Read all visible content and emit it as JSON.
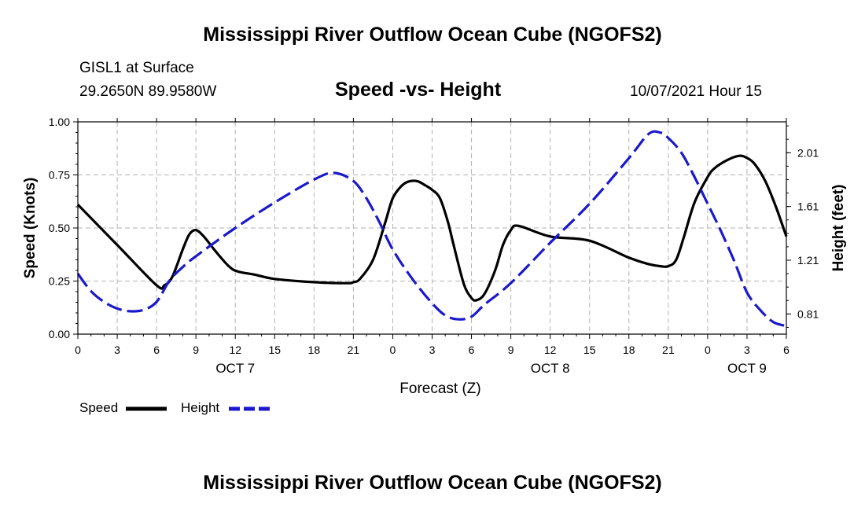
{
  "header": {
    "title": "Mississippi River Outflow Ocean Cube (NGOFS2)",
    "station": "GISL1 at Surface",
    "coords": "29.2650N  89.9580W",
    "plot_title": "Speed -vs- Height",
    "datetime": "10/07/2021 Hour 15"
  },
  "footer": {
    "title": "Mississippi River Outflow Ocean Cube (NGOFS2)"
  },
  "legend": {
    "speed_label": "Speed",
    "height_label": "Height"
  },
  "colors": {
    "speed": "#000000",
    "height": "#1a1acc",
    "grid": "#b3b3b3"
  },
  "chart_data": {
    "type": "line",
    "title": "Speed -vs- Height",
    "xlabel": "Forecast (Z)",
    "ylabel": "Speed (Knots)",
    "y2label": "Height (feet)",
    "xlim": [
      0,
      54
    ],
    "ylim": [
      0,
      1.0
    ],
    "y2lim": [
      0.66,
      2.24
    ],
    "x_ticks": [
      0,
      3,
      6,
      9,
      12,
      15,
      18,
      21,
      24,
      27,
      30,
      33,
      36,
      39,
      42,
      45,
      48,
      51,
      54
    ],
    "x_tick_labels": [
      "0",
      "3",
      "6",
      "9",
      "12",
      "15",
      "18",
      "21",
      "0",
      "3",
      "6",
      "9",
      "12",
      "15",
      "18",
      "21",
      "0",
      "3",
      "6"
    ],
    "day_labels": [
      {
        "x": 12,
        "label": "OCT 7"
      },
      {
        "x": 36,
        "label": "OCT 8"
      },
      {
        "x": 51,
        "label": "OCT 9"
      }
    ],
    "y_ticks": [
      0.0,
      0.25,
      0.5,
      0.75,
      1.0
    ],
    "y_tick_labels": [
      "0.00",
      "0.25",
      "0.50",
      "0.75",
      "1.00"
    ],
    "y2_ticks": [
      0.81,
      1.21,
      1.61,
      2.01
    ],
    "y2_tick_labels": [
      "0.81",
      "1.21",
      "1.61",
      "2.01"
    ],
    "grid": true,
    "series": [
      {
        "name": "Speed",
        "axis": "left",
        "style": "solid",
        "x": [
          0,
          3,
          6,
          6.6,
          7.2,
          8,
          8.5,
          9,
          9.6,
          10.5,
          11.5,
          12.2,
          13.5,
          15,
          18,
          20.5,
          21,
          21.5,
          22.5,
          23.4,
          24,
          24.7,
          25.3,
          25.9,
          26.5,
          27,
          27.6,
          28.2,
          28.6,
          29.4,
          30,
          30.4,
          31,
          31.8,
          32.4,
          33,
          33.6,
          36,
          39,
          42,
          43.5,
          44.4,
          45,
          45.6,
          46.2,
          47,
          48,
          48.5,
          49.5,
          50.4,
          51,
          51.6,
          52.4,
          53.2,
          54
        ],
        "y": [
          0.61,
          0.42,
          0.23,
          0.23,
          0.27,
          0.4,
          0.47,
          0.49,
          0.46,
          0.39,
          0.32,
          0.295,
          0.28,
          0.26,
          0.245,
          0.24,
          0.245,
          0.26,
          0.35,
          0.52,
          0.64,
          0.7,
          0.72,
          0.72,
          0.7,
          0.68,
          0.64,
          0.53,
          0.43,
          0.24,
          0.17,
          0.16,
          0.19,
          0.3,
          0.42,
          0.49,
          0.51,
          0.46,
          0.44,
          0.36,
          0.33,
          0.32,
          0.32,
          0.35,
          0.46,
          0.62,
          0.74,
          0.78,
          0.82,
          0.84,
          0.83,
          0.8,
          0.72,
          0.6,
          0.46
        ]
      },
      {
        "name": "Height",
        "axis": "right",
        "style": "dashed",
        "x": [
          0,
          1,
          2,
          3,
          4,
          5,
          6,
          7,
          8,
          9,
          12,
          15,
          18,
          19.5,
          21,
          22,
          23,
          24,
          25.5,
          27,
          28,
          29,
          30,
          31,
          33,
          36,
          39,
          42,
          43.5,
          44.4,
          45,
          46,
          47,
          48,
          49,
          50,
          51,
          52,
          53,
          54
        ],
        "y": [
          1.11,
          0.98,
          0.9,
          0.85,
          0.83,
          0.84,
          0.9,
          1.06,
          1.16,
          1.24,
          1.45,
          1.64,
          1.81,
          1.86,
          1.8,
          1.67,
          1.49,
          1.29,
          1.07,
          0.89,
          0.8,
          0.77,
          0.79,
          0.88,
          1.04,
          1.34,
          1.63,
          1.97,
          2.15,
          2.16,
          2.12,
          2.01,
          1.83,
          1.63,
          1.43,
          1.21,
          0.97,
          0.84,
          0.75,
          0.72
        ]
      }
    ]
  }
}
